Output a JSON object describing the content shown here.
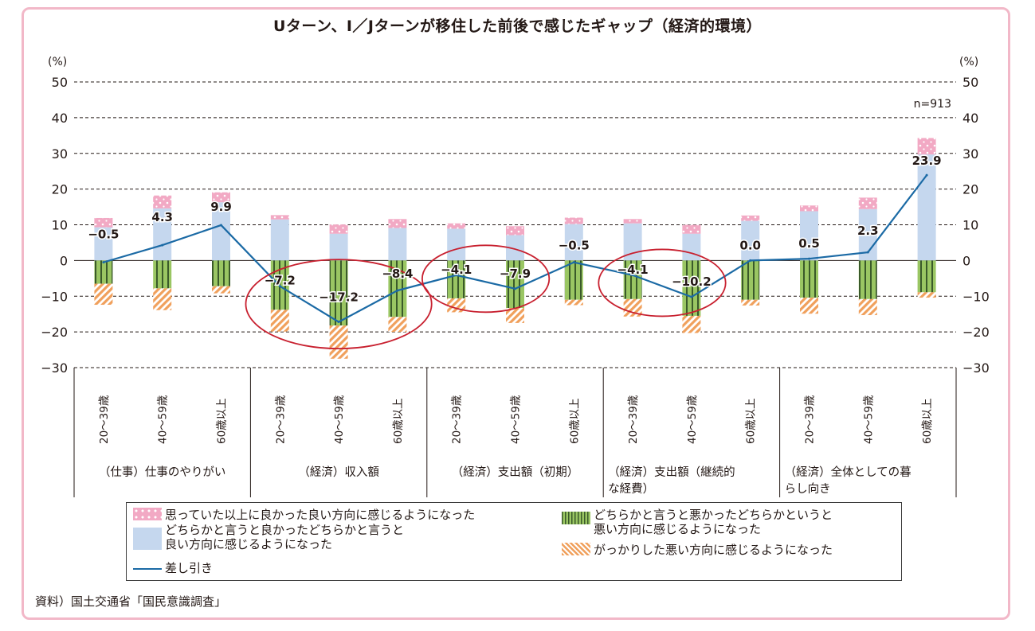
{
  "chart_data": {
    "type": "bar",
    "stacked": true,
    "title": "Uターン、I／Jターンが移住した前後で感じたギャップ（経済的環境）",
    "ylabel_left": "(%)",
    "ylabel_right": "(%)",
    "ylim": [
      -30,
      50
    ],
    "yticks": [
      50,
      40,
      30,
      20,
      10,
      0,
      -10,
      -20,
      -30
    ],
    "ytick_labels": [
      "50",
      "40",
      "30",
      "20",
      "10",
      "0",
      "−10",
      "−20",
      "−30"
    ],
    "note": "n=913",
    "groups": [
      {
        "label": "（仕事）仕事のやりがい",
        "label_lines": [
          "（仕事）仕事のやりがい"
        ]
      },
      {
        "label": "（経済）収入額",
        "label_lines": [
          "（経済）収入額"
        ]
      },
      {
        "label": "（経済）支出額（初期）",
        "label_lines": [
          "（経済）支出額（初期）"
        ]
      },
      {
        "label": "（経済）支出額（継続的な経費）",
        "label_lines": [
          "（経済）支出額（継続的",
          "な経費）"
        ]
      },
      {
        "label": "（経済）全体としての暮らし向き",
        "label_lines": [
          "（経済）全体としての暮",
          "らし向き"
        ]
      }
    ],
    "age_labels": [
      "20〜39歳",
      "40〜59歳",
      "60歳以上"
    ],
    "categories": [
      "20〜39歳",
      "40〜59歳",
      "60歳以上",
      "20〜39歳",
      "40〜59歳",
      "60歳以上",
      "20〜39歳",
      "40〜59歳",
      "60歳以上",
      "20〜39歳",
      "40〜59歳",
      "60歳以上",
      "20〜39歳",
      "40〜59歳",
      "60歳以上"
    ],
    "series": [
      {
        "name": "思っていた以上に良かった良い方向に感じるようになった",
        "color": "#f2a9c4",
        "pattern": "dots",
        "values": [
          2.6,
          3.6,
          2.8,
          1.2,
          2.6,
          2.5,
          1.5,
          2.5,
          1.8,
          1.2,
          2.5,
          1.5,
          1.6,
          3.2,
          4.6
        ]
      },
      {
        "name": "どちらかと言うと良かったどちらかと言うと良い方向に感じるようになった",
        "color": "#c5d7ee",
        "pattern": "solid",
        "values": [
          9.3,
          14.6,
          16.3,
          11.5,
          7.5,
          9.1,
          8.9,
          7.1,
          10.2,
          10.4,
          7.5,
          11.1,
          13.8,
          14.4,
          29.7
        ]
      },
      {
        "name": "どちらかと言うと悪かったどちらかというと悪い方向に感じるようになった",
        "color": "#9ac663",
        "pattern": "vertical-lines",
        "values": [
          -6.5,
          -7.8,
          -7.2,
          -13.8,
          -18.2,
          -15.8,
          -10.6,
          -13.3,
          -11.0,
          -10.8,
          -15.5,
          -11.0,
          -10.4,
          -10.8,
          -8.9
        ]
      },
      {
        "name": "がっかりした悪い方向に感じるようになった",
        "color": "#f0a05c",
        "pattern": "diagonal-hatch",
        "values": [
          -5.9,
          -6.1,
          -2.0,
          -6.1,
          -9.3,
          -4.2,
          -3.9,
          -4.2,
          -1.5,
          -4.9,
          -4.8,
          -1.6,
          -4.5,
          -4.5,
          -1.5
        ]
      },
      {
        "name": "差し引き",
        "color": "#1b6aa5",
        "type": "line",
        "values": [
          -0.5,
          4.3,
          9.9,
          -7.2,
          -17.2,
          -8.4,
          -4.1,
          -7.9,
          -0.5,
          -4.1,
          -10.2,
          0.0,
          0.5,
          2.3,
          23.9
        ],
        "labels": [
          "−0.5",
          "4.3",
          "9.9",
          "−7.2",
          "−17.2",
          "−8.4",
          "−4.1",
          "−7.9",
          "−0.5",
          "−4.1",
          "−10.2",
          "0.0",
          "0.5",
          "2.3",
          "23.9"
        ]
      }
    ],
    "highlights": [
      [
        3,
        5
      ],
      [
        6,
        7
      ],
      [
        9,
        10
      ]
    ],
    "highlight_color": "#c8202f",
    "grid": true,
    "legend_position": "bottom"
  },
  "legend": {
    "items": [
      {
        "lines": [
          "思っていた以上に良かった良い方向に感じるようになった"
        ]
      },
      {
        "lines": [
          "どちらかと言うと良かったどちらかと言うと",
          "良い方向に感じるようになった"
        ]
      },
      {
        "lines": [
          "差し引き"
        ]
      },
      {
        "lines": [
          "どちらかと言うと悪かったどちらかというと",
          "悪い方向に感じるようになった"
        ]
      },
      {
        "lines": [
          "がっかりした悪い方向に感じるようになった"
        ]
      }
    ]
  },
  "source": "資料）国土交通省「国民意識調査」",
  "colors": {
    "frame": "#f2b8c8",
    "text": "#231815"
  }
}
